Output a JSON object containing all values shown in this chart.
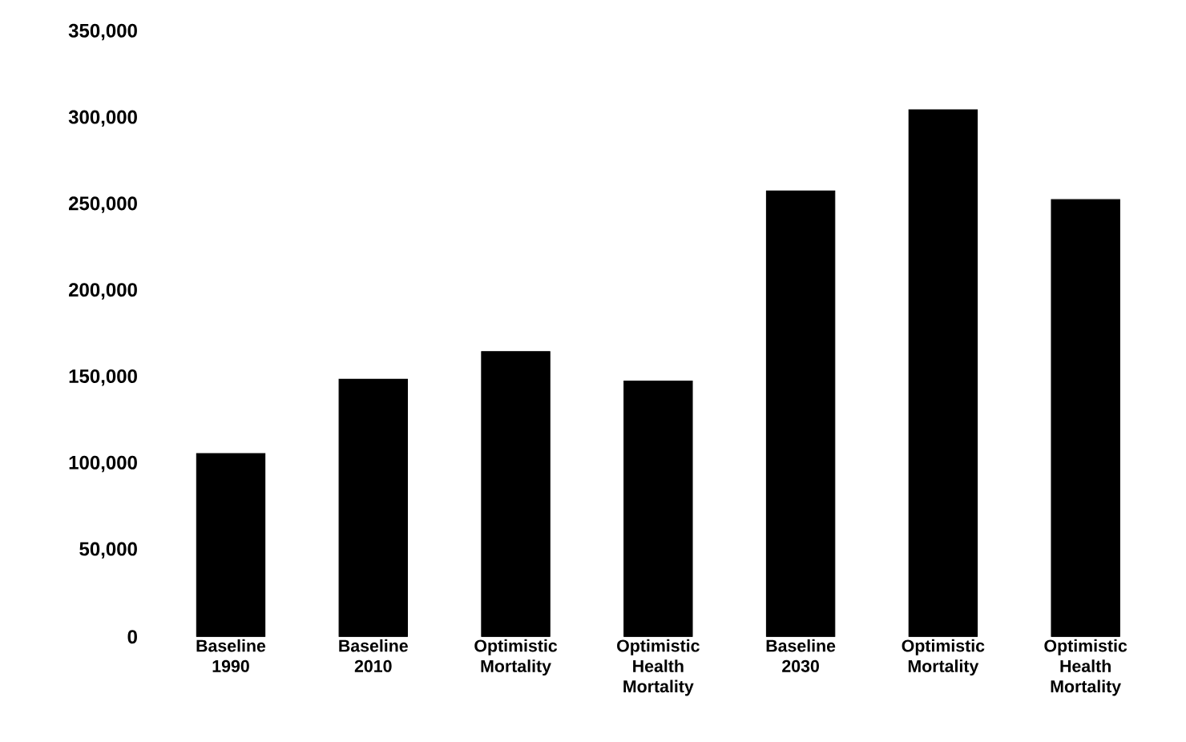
{
  "chart_data": {
    "type": "bar",
    "categories": [
      "Baseline 1990",
      "Baseline 2010",
      "Optimistic Mortality",
      "Optimistic Health Mortality",
      "Baseline 2030",
      "Optimistic Mortality",
      "Optimistic Health Mortality"
    ],
    "values": [
      106000,
      149000,
      165000,
      148000,
      258000,
      305000,
      253000
    ],
    "color": "#000000",
    "ylim": [
      0,
      350000
    ],
    "yticks": [
      {
        "value": 0,
        "label": "0"
      },
      {
        "value": 50000,
        "label": "50,000"
      },
      {
        "value": 100000,
        "label": "100,000"
      },
      {
        "value": 150000,
        "label": "150,000"
      },
      {
        "value": 200000,
        "label": "200,000"
      },
      {
        "value": 250000,
        "label": "250,000"
      },
      {
        "value": 300000,
        "label": "300,000"
      },
      {
        "value": 350000,
        "label": "350,000"
      }
    ],
    "grid": false
  }
}
